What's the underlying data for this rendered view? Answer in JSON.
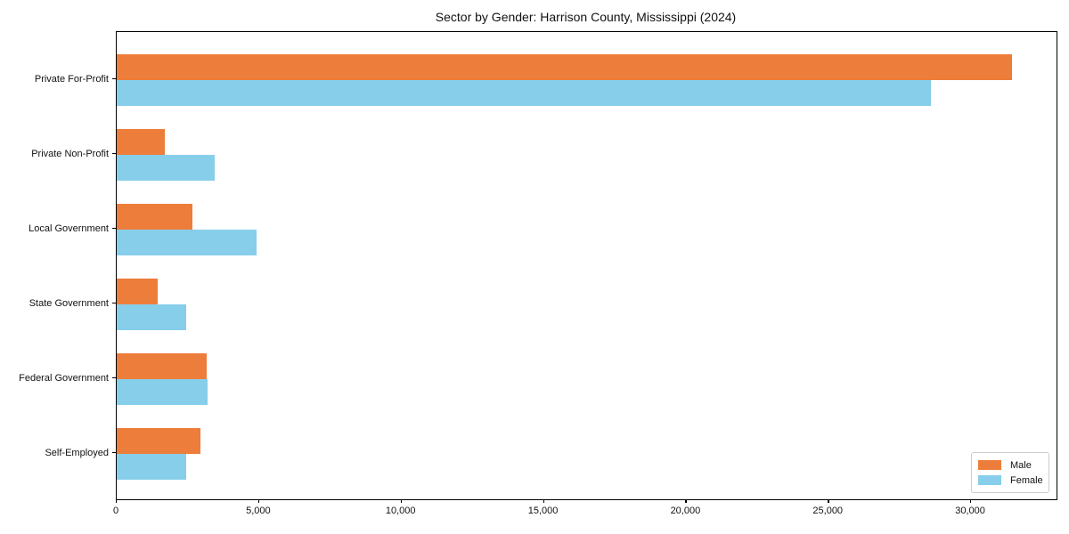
{
  "chart_data": {
    "type": "bar",
    "orientation": "horizontal",
    "title": "Sector by Gender: Harrison County, Mississippi (2024)",
    "categories": [
      "Private For-Profit",
      "Private Non-Profit",
      "Local Government",
      "State Government",
      "Federal Government",
      "Self-Employed"
    ],
    "series": [
      {
        "name": "Male",
        "color": "#ed7d3a",
        "values": [
          31450,
          1700,
          2650,
          1450,
          3150,
          2950
        ]
      },
      {
        "name": "Female",
        "color": "#87ceeb",
        "values": [
          28600,
          3450,
          4900,
          2450,
          3200,
          2450
        ]
      }
    ],
    "xlim": [
      0,
      33000
    ],
    "x_ticks": [
      {
        "value": 0,
        "label": "0"
      },
      {
        "value": 5000,
        "label": "5,000"
      },
      {
        "value": 10000,
        "label": "10,000"
      },
      {
        "value": 15000,
        "label": "15,000"
      },
      {
        "value": 20000,
        "label": "20,000"
      },
      {
        "value": 25000,
        "label": "25,000"
      },
      {
        "value": 30000,
        "label": "30,000"
      }
    ],
    "grid": false,
    "legend": {
      "position": "lower-right",
      "entries": [
        "Male",
        "Female"
      ]
    }
  },
  "colors": {
    "male": "#ed7d3a",
    "female": "#87ceeb",
    "spine": "#000000",
    "text": "#111111",
    "legend_border": "#cccccc",
    "background": "#ffffff"
  }
}
